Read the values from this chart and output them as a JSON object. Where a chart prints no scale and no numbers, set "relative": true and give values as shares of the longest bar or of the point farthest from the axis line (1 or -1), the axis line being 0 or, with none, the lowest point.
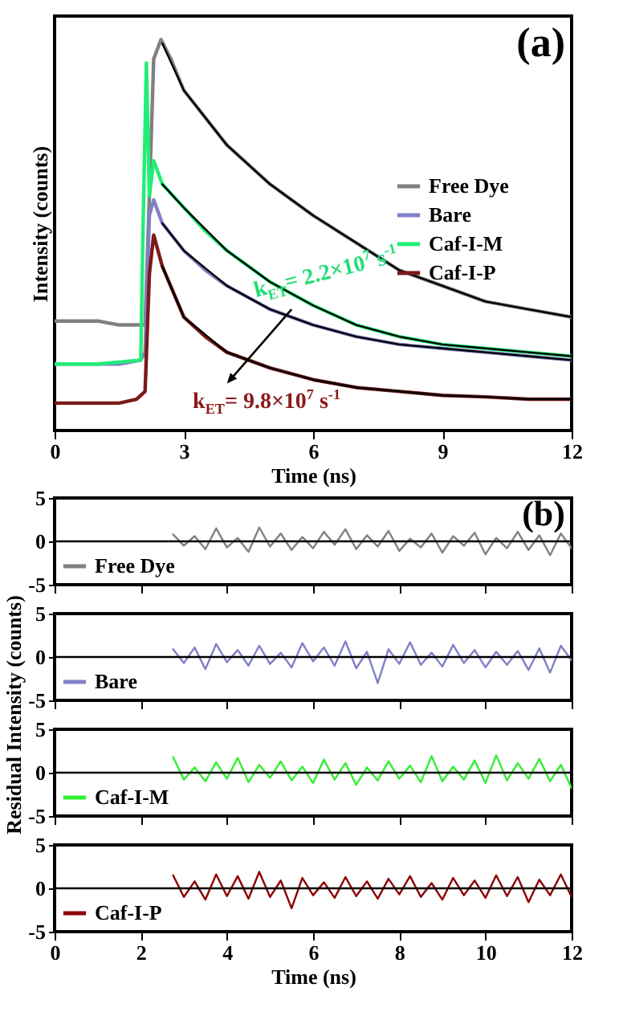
{
  "chart_data": [
    {
      "type": "line",
      "title": "(a)",
      "xlabel": "Time (ns)",
      "ylabel": "Intensity (counts)",
      "relative": true,
      "xlim": [
        0,
        12
      ],
      "xticks": [
        0,
        3,
        6,
        9,
        12
      ],
      "legend": "right",
      "annotations": [
        "k$_{ET}$= 2.2×10$^{7}$ s$^{-1}$",
        "k$_{ET}$= 9.8×10$^{7}$ s$^{-1}$"
      ],
      "series": [
        {
          "name": "Free Dye",
          "color": "#808080",
          "x": [
            0,
            0.5,
            1,
            1.5,
            2,
            2.1,
            2.2,
            2.3,
            2.47,
            2.7,
            3,
            3.5,
            4,
            5,
            6,
            7,
            8,
            9,
            10,
            11,
            12
          ],
          "values": [
            0.28,
            0.28,
            0.28,
            0.27,
            0.27,
            0.27,
            0.6,
            0.95,
            1.0,
            0.95,
            0.87,
            0.8,
            0.73,
            0.63,
            0.55,
            0.48,
            0.41,
            0.37,
            0.33,
            0.31,
            0.29
          ]
        },
        {
          "name": "Bare",
          "color": "#8080c8",
          "x": [
            0,
            0.5,
            1,
            1.5,
            2,
            2.1,
            2.2,
            2.3,
            2.5,
            3,
            3.5,
            4,
            5,
            6,
            7,
            8,
            9,
            10,
            11,
            12
          ],
          "values": [
            0.17,
            0.17,
            0.17,
            0.17,
            0.18,
            0.2,
            0.55,
            0.59,
            0.53,
            0.46,
            0.41,
            0.37,
            0.31,
            0.27,
            0.24,
            0.22,
            0.21,
            0.2,
            0.19,
            0.18
          ]
        },
        {
          "name": "Caf-I-M",
          "color": "#22ee77",
          "x": [
            0,
            1,
            2,
            2.05,
            2.13,
            2.2,
            2.3,
            2.5,
            3,
            3.5,
            4,
            5,
            6,
            7,
            8,
            9,
            10,
            11,
            12
          ],
          "values": [
            0.17,
            0.17,
            0.18,
            0.5,
            0.94,
            0.6,
            0.69,
            0.63,
            0.57,
            0.51,
            0.46,
            0.38,
            0.32,
            0.27,
            0.24,
            0.22,
            0.21,
            0.2,
            0.19
          ]
        },
        {
          "name": "Caf-I-P",
          "color": "#7a1a1a",
          "x": [
            0,
            0.5,
            1,
            1.5,
            1.9,
            2.1,
            2.2,
            2.3,
            2.5,
            3,
            3.5,
            4,
            5,
            6,
            7,
            8,
            9,
            10,
            11,
            12
          ],
          "values": [
            0.07,
            0.07,
            0.07,
            0.07,
            0.08,
            0.1,
            0.4,
            0.5,
            0.42,
            0.29,
            0.24,
            0.2,
            0.16,
            0.13,
            0.11,
            0.1,
            0.09,
            0.086,
            0.08,
            0.08
          ]
        },
        {
          "color": "#000000",
          "x": [
            2.5,
            3,
            4,
            5,
            6,
            7,
            8,
            9,
            10,
            11,
            12
          ],
          "values": [
            0.99,
            0.87,
            0.73,
            0.63,
            0.55,
            0.48,
            0.41,
            0.37,
            0.33,
            0.31,
            0.29
          ]
        },
        {
          "color": "#000000",
          "x": [
            2.5,
            3,
            4,
            5,
            6,
            7,
            8,
            9,
            10,
            11,
            12
          ],
          "values": [
            0.53,
            0.46,
            0.37,
            0.31,
            0.27,
            0.24,
            0.22,
            0.21,
            0.2,
            0.19,
            0.18
          ]
        },
        {
          "color": "#000000",
          "x": [
            2.5,
            3,
            4,
            5,
            6,
            7,
            8,
            9,
            10,
            11,
            12
          ],
          "values": [
            0.63,
            0.57,
            0.46,
            0.38,
            0.32,
            0.27,
            0.24,
            0.22,
            0.21,
            0.2,
            0.19
          ]
        },
        {
          "color": "#000000",
          "x": [
            2.5,
            3,
            4,
            5,
            6,
            7,
            8,
            9,
            10,
            11,
            12
          ],
          "values": [
            0.42,
            0.29,
            0.2,
            0.16,
            0.13,
            0.11,
            0.1,
            0.09,
            0.086,
            0.08,
            0.08
          ]
        }
      ]
    },
    {
      "type": "line",
      "title": "(b)",
      "ylabel": "Residual Intensity (counts)",
      "xlim": [
        0,
        12
      ],
      "xticks": [
        0,
        2,
        4,
        6,
        8,
        10,
        12
      ],
      "ylim": [
        -5,
        5
      ],
      "yticks": [
        -5,
        0,
        5
      ],
      "tick_labels": "y",
      "legend": "bottom left",
      "ref_lines": [
        {
          "axis": "y",
          "value": 0,
          "color": "#000000"
        }
      ],
      "x": [
        2.75,
        3,
        3.25,
        3.5,
        3.75,
        4,
        4.25,
        4.5,
        4.75,
        5,
        5.25,
        5.5,
        5.75,
        6,
        6.25,
        6.5,
        6.75,
        7,
        7.25,
        7.5,
        7.75,
        8,
        8.25,
        8.5,
        8.75,
        9,
        9.25,
        9.5,
        9.75,
        10,
        10.25,
        10.5,
        10.75,
        11,
        11.25,
        11.5,
        11.75,
        12
      ],
      "series": [
        {
          "name": "Free Dye",
          "color": "#808080",
          "values": [
            0.8,
            -0.5,
            0.6,
            -0.9,
            1.5,
            -0.7,
            0.4,
            -1.2,
            1.6,
            -0.6,
            0.9,
            -1.0,
            0.5,
            -0.8,
            1.1,
            -0.4,
            1.4,
            -0.9,
            0.7,
            -0.6,
            1.2,
            -1.1,
            0.3,
            -0.7,
            0.9,
            -1.3,
            0.6,
            -0.5,
            1.0,
            -1.5,
            0.4,
            -0.8,
            1.1,
            -1.0,
            0.7,
            -1.6,
            0.9,
            -0.8
          ]
        }
      ]
    },
    {
      "type": "line",
      "xlim": [
        0,
        12
      ],
      "xticks": [
        0,
        2,
        4,
        6,
        8,
        10,
        12
      ],
      "ylim": [
        -5,
        5
      ],
      "yticks": [
        -5,
        0,
        5
      ],
      "tick_labels": "y",
      "legend": "bottom left",
      "ref_lines": [
        {
          "axis": "y",
          "value": 0,
          "color": "#000000"
        }
      ],
      "x": [
        2.75,
        3,
        3.25,
        3.5,
        3.75,
        4,
        4.25,
        4.5,
        4.75,
        5,
        5.25,
        5.5,
        5.75,
        6,
        6.25,
        6.5,
        6.75,
        7,
        7.25,
        7.5,
        7.75,
        8,
        8.25,
        8.5,
        8.75,
        9,
        9.25,
        9.5,
        9.75,
        10,
        10.25,
        10.5,
        10.75,
        11,
        11.25,
        11.5,
        11.75,
        12
      ],
      "series": [
        {
          "name": "Bare",
          "color": "#8080c8",
          "values": [
            0.9,
            -0.7,
            1.1,
            -1.4,
            1.5,
            -0.6,
            0.8,
            -1.0,
            1.3,
            -0.8,
            0.5,
            -1.2,
            1.6,
            -0.5,
            1.1,
            -1.0,
            1.8,
            -1.3,
            0.6,
            -3.0,
            0.9,
            -0.8,
            1.7,
            -0.9,
            0.5,
            -1.1,
            1.4,
            -0.7,
            0.8,
            -1.2,
            0.6,
            -0.9,
            0.7,
            -1.5,
            1.0,
            -1.8,
            1.3,
            -0.4
          ]
        }
      ]
    },
    {
      "type": "line",
      "xlim": [
        0,
        12
      ],
      "xticks": [
        0,
        2,
        4,
        6,
        8,
        10,
        12
      ],
      "ylim": [
        -5,
        5
      ],
      "yticks": [
        -5,
        0,
        5
      ],
      "tick_labels": "y",
      "legend": "bottom left",
      "ref_lines": [
        {
          "axis": "y",
          "value": 0,
          "color": "#000000"
        }
      ],
      "x": [
        2.75,
        3,
        3.25,
        3.5,
        3.75,
        4,
        4.25,
        4.5,
        4.75,
        5,
        5.25,
        5.5,
        5.75,
        6,
        6.25,
        6.5,
        6.75,
        7,
        7.25,
        7.5,
        7.75,
        8,
        8.25,
        8.5,
        8.75,
        9,
        9.25,
        9.5,
        9.75,
        10,
        10.25,
        10.5,
        10.75,
        11,
        11.25,
        11.5,
        11.75,
        12
      ],
      "series": [
        {
          "name": "Caf-I-M",
          "color": "#33ee33",
          "values": [
            1.8,
            -0.8,
            0.6,
            -1.0,
            1.2,
            -0.7,
            1.7,
            -1.1,
            0.9,
            -0.6,
            1.3,
            -0.9,
            0.7,
            -1.2,
            1.5,
            -0.8,
            1.1,
            -1.4,
            0.6,
            -0.9,
            1.3,
            -0.7,
            0.8,
            -1.1,
            1.9,
            -1.0,
            0.7,
            -0.8,
            1.4,
            -1.2,
            2.0,
            -0.9,
            1.1,
            -0.7,
            1.6,
            -1.0,
            0.9,
            -1.8
          ]
        }
      ]
    },
    {
      "type": "line",
      "xlabel": "Time (ns)",
      "xlim": [
        0,
        12
      ],
      "xticks": [
        0,
        2,
        4,
        6,
        8,
        10,
        12
      ],
      "ylim": [
        -5,
        5
      ],
      "yticks": [
        -5,
        0,
        5
      ],
      "legend": "bottom left",
      "ref_lines": [
        {
          "axis": "y",
          "value": 0,
          "color": "#000000"
        }
      ],
      "x": [
        2.75,
        3,
        3.25,
        3.5,
        3.75,
        4,
        4.25,
        4.5,
        4.75,
        5,
        5.25,
        5.5,
        5.75,
        6,
        6.25,
        6.5,
        6.75,
        7,
        7.25,
        7.5,
        7.75,
        8,
        8.25,
        8.5,
        8.75,
        9,
        9.25,
        9.5,
        9.75,
        10,
        10.25,
        10.5,
        10.75,
        11,
        11.25,
        11.5,
        11.75,
        12
      ],
      "series": [
        {
          "name": "Caf-I-P",
          "color": "#8b0000",
          "values": [
            1.5,
            -1.0,
            0.8,
            -1.3,
            1.6,
            -0.9,
            1.4,
            -1.2,
            1.9,
            -1.0,
            0.9,
            -2.3,
            1.2,
            -0.8,
            0.7,
            -1.1,
            1.3,
            -0.9,
            0.8,
            -1.2,
            1.1,
            -0.7,
            1.4,
            -1.0,
            0.6,
            -1.3,
            1.2,
            -0.8,
            0.9,
            -1.1,
            1.5,
            -0.9,
            1.3,
            -1.6,
            1.0,
            -0.8,
            1.6,
            -1.0
          ]
        }
      ]
    }
  ]
}
